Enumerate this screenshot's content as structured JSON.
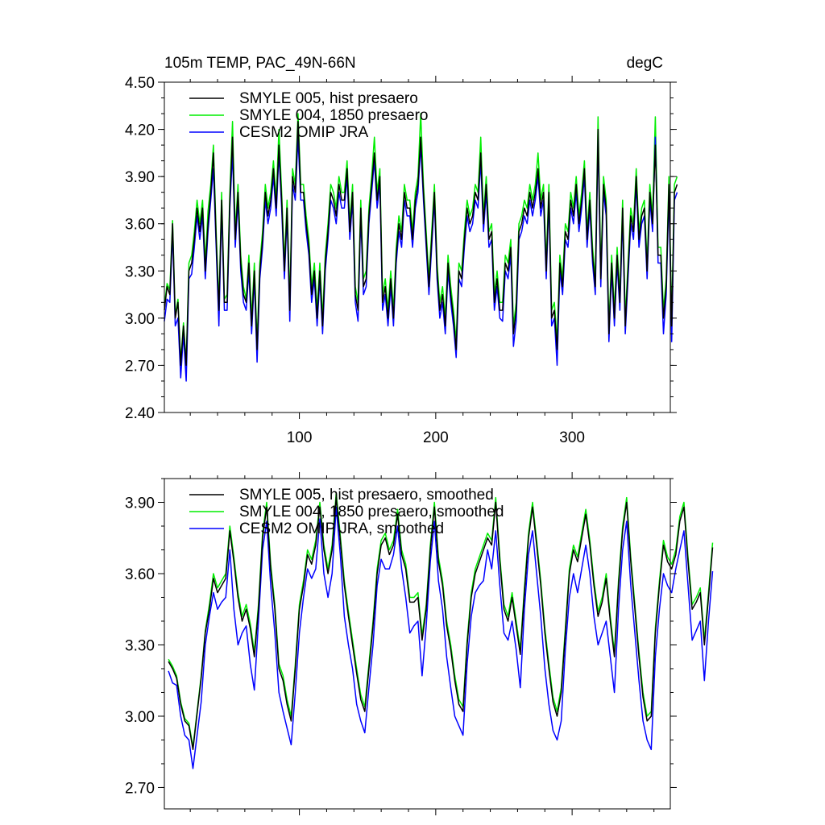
{
  "chart_data": [
    {
      "type": "line",
      "title_left": "105m TEMP, PAC_49N-66N",
      "title_right": "degC",
      "xlabel": "",
      "ylabel": "",
      "xlim": [
        1,
        372
      ],
      "ylim": [
        2.4,
        4.5
      ],
      "yticks": [
        2.4,
        2.7,
        3.0,
        3.3,
        3.6,
        3.9,
        4.2,
        4.5
      ],
      "ytick_labels": [
        "2.40",
        "2.70",
        "3.00",
        "3.30",
        "3.60",
        "3.90",
        "4.20",
        "4.50"
      ],
      "xticks": [
        100,
        200,
        300
      ],
      "xtick_labels": [
        "100",
        "200",
        "300"
      ],
      "legend_position": "top-left",
      "series": [
        {
          "name": "SMYLE 005, hist presaero",
          "color": "#000000",
          "x_start": 1,
          "x_step": 2,
          "values": [
            3.05,
            3.2,
            3.15,
            3.6,
            3.0,
            3.1,
            2.7,
            2.95,
            2.7,
            3.3,
            3.35,
            3.5,
            3.7,
            3.55,
            3.7,
            3.3,
            3.6,
            3.8,
            4.05,
            3.5,
            3.05,
            3.75,
            3.1,
            3.1,
            3.75,
            4.15,
            3.5,
            3.8,
            3.35,
            3.15,
            3.1,
            3.35,
            2.95,
            3.3,
            2.8,
            3.3,
            3.5,
            3.8,
            3.65,
            3.75,
            3.95,
            3.7,
            4.1,
            3.75,
            3.3,
            3.7,
            3.05,
            3.9,
            3.8,
            4.25,
            3.8,
            3.8,
            3.6,
            3.45,
            3.15,
            3.3,
            3.0,
            3.3,
            2.95,
            3.35,
            3.55,
            3.8,
            3.75,
            3.65,
            3.85,
            3.75,
            3.75,
            3.95,
            3.55,
            3.8,
            3.15,
            3.05,
            3.7,
            3.2,
            3.25,
            3.65,
            3.85,
            4.05,
            3.75,
            3.9,
            3.1,
            3.2,
            3.0,
            3.25,
            3.0,
            3.4,
            3.6,
            3.5,
            3.8,
            3.7,
            3.7,
            3.5,
            3.75,
            3.85,
            4.15,
            3.8,
            3.5,
            3.2,
            3.5,
            3.8,
            3.3,
            3.05,
            3.15,
            2.95,
            3.35,
            3.15,
            3.0,
            2.8,
            3.3,
            3.25,
            3.5,
            3.7,
            3.6,
            3.65,
            3.8,
            3.75,
            4.05,
            3.6,
            3.85,
            3.5,
            3.55,
            3.1,
            3.25,
            3.05,
            3.05,
            3.35,
            3.3,
            3.45,
            2.9,
            3.05,
            3.55,
            3.6,
            3.7,
            3.65,
            3.8,
            3.7,
            3.8,
            3.95,
            3.7,
            3.8,
            3.3,
            3.8,
            3.0,
            3.05,
            2.8,
            3.35,
            3.2,
            3.55,
            3.5,
            3.75,
            3.65,
            3.85,
            3.6,
            3.75,
            3.95,
            3.5,
            3.75,
            3.4,
            3.2,
            4.2,
            3.25,
            3.85,
            3.7,
            2.9,
            3.35,
            3.0,
            3.4,
            3.1,
            3.7,
            2.95,
            3.3,
            3.65,
            3.55,
            3.9,
            3.5,
            3.65,
            3.7,
            3.3,
            3.8,
            3.6,
            4.1,
            3.4,
            3.4,
            3.0,
            3.2,
            3.85,
            2.95,
            3.8,
            3.85
          ]
        },
        {
          "name": "SMYLE 004, 1850 presaero",
          "color": "#00ee00",
          "x_start": 1,
          "x_step": 2,
          "values": [
            3.08,
            3.22,
            3.18,
            3.62,
            3.02,
            3.12,
            2.72,
            2.97,
            2.72,
            3.35,
            3.4,
            3.55,
            3.75,
            3.6,
            3.75,
            3.35,
            3.68,
            3.85,
            4.1,
            3.55,
            3.08,
            3.8,
            3.12,
            3.15,
            3.8,
            4.25,
            3.55,
            3.85,
            3.4,
            3.2,
            3.12,
            3.4,
            3.0,
            3.35,
            2.85,
            3.35,
            3.55,
            3.85,
            3.7,
            3.8,
            4.0,
            3.75,
            4.2,
            3.8,
            3.35,
            3.75,
            3.1,
            3.95,
            3.85,
            4.3,
            3.85,
            3.85,
            3.65,
            3.5,
            3.2,
            3.35,
            3.05,
            3.35,
            3.0,
            3.4,
            3.6,
            3.85,
            3.8,
            3.7,
            3.9,
            3.8,
            3.8,
            4.0,
            3.6,
            3.85,
            3.2,
            3.1,
            3.75,
            3.25,
            3.3,
            3.7,
            3.9,
            4.15,
            3.8,
            3.95,
            3.15,
            3.25,
            3.05,
            3.3,
            3.05,
            3.45,
            3.65,
            3.55,
            3.85,
            3.75,
            3.75,
            3.55,
            3.8,
            3.9,
            4.3,
            3.85,
            3.55,
            3.25,
            3.55,
            3.85,
            3.35,
            3.1,
            3.2,
            3.0,
            3.4,
            3.2,
            3.05,
            2.85,
            3.35,
            3.3,
            3.55,
            3.75,
            3.65,
            3.7,
            3.85,
            3.8,
            4.15,
            3.65,
            3.9,
            3.55,
            3.6,
            3.15,
            3.3,
            3.1,
            3.1,
            3.4,
            3.35,
            3.5,
            2.95,
            3.1,
            3.6,
            3.65,
            3.75,
            3.7,
            3.85,
            3.75,
            3.85,
            4.05,
            3.75,
            3.85,
            3.35,
            3.85,
            3.05,
            3.1,
            2.85,
            3.4,
            3.25,
            3.6,
            3.55,
            3.8,
            3.7,
            3.9,
            3.65,
            3.8,
            4.0,
            3.55,
            3.8,
            3.45,
            3.25,
            4.28,
            3.3,
            3.9,
            3.75,
            2.95,
            3.4,
            3.05,
            3.45,
            3.15,
            3.75,
            3.0,
            3.35,
            3.7,
            3.6,
            3.95,
            3.55,
            3.7,
            3.75,
            3.35,
            3.85,
            3.65,
            4.28,
            3.45,
            3.45,
            3.05,
            3.25,
            3.9,
            3.0,
            3.85,
            3.9
          ]
        },
        {
          "name": "CESM2 OMIP JRA",
          "color": "#0000ff",
          "x_start": 1,
          "x_step": 2,
          "values": [
            2.98,
            3.12,
            3.1,
            3.55,
            2.95,
            3.0,
            2.62,
            2.9,
            2.6,
            3.25,
            3.28,
            3.45,
            3.65,
            3.5,
            3.65,
            3.25,
            3.55,
            3.75,
            3.95,
            3.45,
            2.95,
            3.7,
            3.05,
            3.05,
            3.7,
            4.05,
            3.45,
            3.75,
            3.3,
            3.1,
            3.05,
            3.3,
            2.9,
            3.25,
            2.72,
            3.25,
            3.45,
            3.75,
            3.6,
            3.7,
            3.9,
            3.65,
            4.05,
            3.7,
            3.25,
            3.65,
            2.98,
            3.85,
            3.75,
            4.15,
            3.75,
            3.75,
            3.55,
            3.4,
            3.1,
            3.25,
            2.95,
            3.25,
            2.9,
            3.3,
            3.5,
            3.75,
            3.7,
            3.6,
            3.8,
            3.7,
            3.7,
            3.9,
            3.5,
            3.75,
            3.1,
            2.98,
            3.65,
            3.15,
            3.2,
            3.6,
            3.8,
            4.0,
            3.7,
            3.85,
            3.05,
            3.15,
            2.95,
            3.2,
            2.95,
            3.35,
            3.55,
            3.45,
            3.75,
            3.65,
            3.65,
            3.45,
            3.7,
            3.8,
            4.1,
            3.75,
            3.45,
            3.15,
            3.45,
            3.75,
            3.25,
            3.0,
            3.1,
            2.9,
            3.3,
            3.1,
            2.95,
            2.75,
            3.25,
            3.2,
            3.45,
            3.65,
            3.55,
            3.6,
            3.75,
            3.7,
            4.0,
            3.55,
            3.8,
            3.45,
            3.5,
            3.05,
            3.2,
            3.0,
            2.98,
            3.3,
            3.25,
            3.4,
            2.82,
            2.98,
            3.5,
            3.55,
            3.65,
            3.6,
            3.75,
            3.65,
            3.75,
            3.9,
            3.65,
            3.75,
            3.25,
            3.75,
            2.95,
            3.0,
            2.7,
            3.3,
            3.15,
            3.5,
            3.45,
            3.7,
            3.6,
            3.8,
            3.55,
            3.7,
            3.9,
            3.45,
            3.7,
            3.35,
            3.15,
            4.15,
            3.2,
            3.8,
            3.65,
            2.85,
            3.3,
            2.95,
            3.35,
            3.05,
            3.65,
            2.9,
            3.25,
            3.6,
            3.5,
            3.85,
            3.45,
            3.6,
            3.65,
            3.25,
            3.75,
            3.55,
            4.15,
            3.35,
            3.35,
            2.9,
            3.15,
            3.8,
            2.85,
            3.75,
            3.8
          ]
        }
      ]
    },
    {
      "type": "line",
      "xlabel": "",
      "ylabel": "",
      "xlim": [
        1,
        372
      ],
      "ylim": [
        2.61,
        4.0
      ],
      "yticks": [
        2.7,
        3.0,
        3.3,
        3.6,
        3.9
      ],
      "ytick_labels": [
        "2.70",
        "3.00",
        "3.30",
        "3.60",
        "3.90"
      ],
      "xticks": [
        100,
        200,
        300
      ],
      "xtick_labels": [
        "",
        "",
        ""
      ],
      "legend_position": "top-left",
      "series": [
        {
          "name": "SMYLE 005, hist presaero, smoothed",
          "color": "#000000",
          "x_start": 4,
          "x_step": 3,
          "values": [
            3.23,
            3.2,
            3.16,
            3.05,
            2.98,
            2.96,
            2.86,
            3.01,
            3.16,
            3.35,
            3.45,
            3.58,
            3.52,
            3.55,
            3.58,
            3.78,
            3.65,
            3.5,
            3.4,
            3.45,
            3.37,
            3.25,
            3.45,
            3.75,
            3.88,
            3.62,
            3.45,
            3.2,
            3.15,
            3.05,
            2.98,
            3.2,
            3.45,
            3.55,
            3.68,
            3.64,
            3.72,
            3.88,
            3.7,
            3.6,
            3.7,
            3.92,
            3.74,
            3.55,
            3.42,
            3.3,
            3.18,
            3.07,
            3.02,
            3.2,
            3.38,
            3.6,
            3.72,
            3.75,
            3.68,
            3.72,
            3.85,
            3.68,
            3.62,
            3.48,
            3.48,
            3.5,
            3.32,
            3.45,
            3.7,
            3.88,
            3.65,
            3.55,
            3.38,
            3.28,
            3.15,
            3.05,
            3.02,
            3.3,
            3.5,
            3.6,
            3.65,
            3.7,
            3.75,
            3.72,
            3.9,
            3.65,
            3.45,
            3.4,
            3.5,
            3.38,
            3.26,
            3.52,
            3.75,
            3.88,
            3.72,
            3.55,
            3.35,
            3.2,
            3.06,
            3.0,
            3.1,
            3.35,
            3.6,
            3.7,
            3.65,
            3.75,
            3.85,
            3.72,
            3.55,
            3.42,
            3.48,
            3.58,
            3.4,
            3.25,
            3.55,
            3.78,
            3.9,
            3.65,
            3.45,
            3.25,
            3.08,
            2.98,
            3.0,
            3.35,
            3.55,
            3.72,
            3.65,
            3.62,
            3.68,
            3.82,
            3.88,
            3.65,
            3.45,
            3.48,
            3.52,
            3.3,
            3.5,
            3.71
          ]
        },
        {
          "name": "SMYLE 004, 1850 presaero, smoothed",
          "color": "#00ee00",
          "x_start": 4,
          "x_step": 3,
          "values": [
            3.24,
            3.21,
            3.17,
            3.06,
            2.99,
            2.97,
            2.87,
            3.02,
            3.17,
            3.36,
            3.47,
            3.6,
            3.54,
            3.57,
            3.6,
            3.8,
            3.67,
            3.52,
            3.42,
            3.47,
            3.39,
            3.27,
            3.47,
            3.77,
            3.9,
            3.64,
            3.47,
            3.22,
            3.17,
            3.07,
            3.0,
            3.22,
            3.47,
            3.57,
            3.7,
            3.66,
            3.74,
            3.9,
            3.72,
            3.62,
            3.72,
            3.94,
            3.76,
            3.57,
            3.44,
            3.32,
            3.2,
            3.09,
            3.04,
            3.22,
            3.4,
            3.62,
            3.74,
            3.77,
            3.7,
            3.74,
            3.87,
            3.7,
            3.64,
            3.5,
            3.5,
            3.52,
            3.34,
            3.47,
            3.72,
            3.9,
            3.67,
            3.57,
            3.4,
            3.3,
            3.17,
            3.07,
            3.04,
            3.32,
            3.52,
            3.62,
            3.67,
            3.72,
            3.77,
            3.74,
            3.92,
            3.67,
            3.47,
            3.42,
            3.52,
            3.4,
            3.28,
            3.54,
            3.77,
            3.9,
            3.74,
            3.57,
            3.37,
            3.22,
            3.08,
            3.02,
            3.12,
            3.37,
            3.62,
            3.72,
            3.67,
            3.77,
            3.87,
            3.74,
            3.57,
            3.44,
            3.5,
            3.6,
            3.42,
            3.27,
            3.57,
            3.8,
            3.92,
            3.67,
            3.47,
            3.27,
            3.1,
            3.0,
            3.02,
            3.37,
            3.57,
            3.74,
            3.67,
            3.64,
            3.7,
            3.84,
            3.9,
            3.67,
            3.47,
            3.5,
            3.54,
            3.32,
            3.52,
            3.73
          ]
        },
        {
          "name": "CESM2 OMIP JRA, smoothed",
          "color": "#0000ff",
          "x_start": 4,
          "x_step": 3,
          "values": [
            3.19,
            3.14,
            3.13,
            3.0,
            2.92,
            2.9,
            2.78,
            2.92,
            3.06,
            3.3,
            3.42,
            3.52,
            3.45,
            3.48,
            3.5,
            3.7,
            3.45,
            3.3,
            3.35,
            3.38,
            3.22,
            3.11,
            3.4,
            3.7,
            3.82,
            3.55,
            3.35,
            3.1,
            3.02,
            2.95,
            2.88,
            3.1,
            3.35,
            3.5,
            3.62,
            3.58,
            3.62,
            3.83,
            3.6,
            3.5,
            3.6,
            3.88,
            3.68,
            3.42,
            3.3,
            3.2,
            3.05,
            2.98,
            2.93,
            3.12,
            3.3,
            3.55,
            3.66,
            3.62,
            3.62,
            3.68,
            3.8,
            3.62,
            3.5,
            3.35,
            3.38,
            3.4,
            3.17,
            3.38,
            3.65,
            3.82,
            3.57,
            3.45,
            3.25,
            3.12,
            3.0,
            2.96,
            2.92,
            3.22,
            3.42,
            3.52,
            3.55,
            3.57,
            3.7,
            3.62,
            3.78,
            3.55,
            3.35,
            3.32,
            3.4,
            3.28,
            3.12,
            3.45,
            3.68,
            3.78,
            3.6,
            3.42,
            3.2,
            3.05,
            2.94,
            2.9,
            2.98,
            3.28,
            3.5,
            3.6,
            3.52,
            3.62,
            3.72,
            3.6,
            3.42,
            3.3,
            3.35,
            3.4,
            3.25,
            3.1,
            3.45,
            3.7,
            3.82,
            3.55,
            3.35,
            3.15,
            2.98,
            2.9,
            2.86,
            3.25,
            3.45,
            3.6,
            3.55,
            3.52,
            3.62,
            3.7,
            3.78,
            3.55,
            3.32,
            3.36,
            3.4,
            3.15,
            3.4,
            3.61
          ]
        }
      ]
    }
  ]
}
